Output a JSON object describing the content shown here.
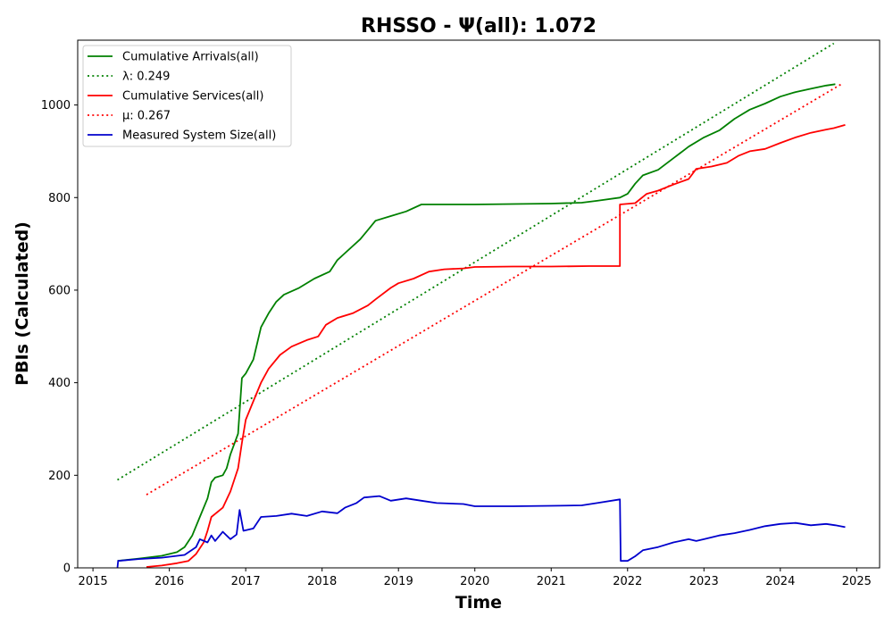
{
  "chart_data": {
    "type": "line",
    "title": "RHSSO -  Ψ(all): 1.072",
    "xlabel": "Time",
    "ylabel": "PBIs (Calculated)",
    "xlim": [
      2014.8,
      2025.3
    ],
    "ylim": [
      0,
      1140
    ],
    "x_ticks": [
      2015,
      2016,
      2017,
      2018,
      2019,
      2020,
      2021,
      2022,
      2023,
      2024,
      2025
    ],
    "y_ticks": [
      0,
      200,
      400,
      600,
      800,
      1000
    ],
    "grid": false,
    "legend_position": "upper-left",
    "series": [
      {
        "name": "Cumulative Arrivals(all)",
        "color": "#008000",
        "style": "solid",
        "points": [
          [
            2015.32,
            15
          ],
          [
            2015.6,
            20
          ],
          [
            2015.9,
            26
          ],
          [
            2016.1,
            34
          ],
          [
            2016.2,
            45
          ],
          [
            2016.3,
            70
          ],
          [
            2016.4,
            110
          ],
          [
            2016.5,
            150
          ],
          [
            2016.55,
            185
          ],
          [
            2016.6,
            195
          ],
          [
            2016.7,
            200
          ],
          [
            2016.75,
            215
          ],
          [
            2016.8,
            245
          ],
          [
            2016.9,
            290
          ],
          [
            2016.95,
            410
          ],
          [
            2017.0,
            420
          ],
          [
            2017.1,
            450
          ],
          [
            2017.2,
            520
          ],
          [
            2017.3,
            550
          ],
          [
            2017.4,
            575
          ],
          [
            2017.5,
            590
          ],
          [
            2017.7,
            605
          ],
          [
            2017.9,
            625
          ],
          [
            2018.1,
            640
          ],
          [
            2018.2,
            665
          ],
          [
            2018.3,
            680
          ],
          [
            2018.5,
            710
          ],
          [
            2018.6,
            730
          ],
          [
            2018.7,
            750
          ],
          [
            2018.9,
            760
          ],
          [
            2019.1,
            770
          ],
          [
            2019.3,
            785
          ],
          [
            2019.5,
            785
          ],
          [
            2020.0,
            785
          ],
          [
            2020.5,
            786
          ],
          [
            2021.0,
            787
          ],
          [
            2021.4,
            789
          ],
          [
            2021.6,
            793
          ],
          [
            2021.9,
            800
          ],
          [
            2022.0,
            808
          ],
          [
            2022.1,
            830
          ],
          [
            2022.2,
            848
          ],
          [
            2022.4,
            860
          ],
          [
            2022.6,
            885
          ],
          [
            2022.8,
            910
          ],
          [
            2023.0,
            930
          ],
          [
            2023.2,
            945
          ],
          [
            2023.4,
            970
          ],
          [
            2023.6,
            990
          ],
          [
            2023.8,
            1003
          ],
          [
            2024.0,
            1018
          ],
          [
            2024.2,
            1028
          ],
          [
            2024.4,
            1035
          ],
          [
            2024.6,
            1042
          ],
          [
            2024.72,
            1045
          ]
        ]
      },
      {
        "name": "λ: 0.249",
        "color": "#008000",
        "style": "dotted",
        "points": [
          [
            2015.32,
            190
          ],
          [
            2024.7,
            1133
          ]
        ]
      },
      {
        "name": "Cumulative Services(all)",
        "color": "#ff0000",
        "style": "solid",
        "points": [
          [
            2015.7,
            2
          ],
          [
            2015.9,
            5
          ],
          [
            2016.1,
            10
          ],
          [
            2016.25,
            15
          ],
          [
            2016.35,
            30
          ],
          [
            2016.45,
            55
          ],
          [
            2016.5,
            80
          ],
          [
            2016.55,
            110
          ],
          [
            2016.7,
            130
          ],
          [
            2016.8,
            165
          ],
          [
            2016.9,
            215
          ],
          [
            2016.95,
            270
          ],
          [
            2017.0,
            320
          ],
          [
            2017.1,
            360
          ],
          [
            2017.2,
            400
          ],
          [
            2017.3,
            430
          ],
          [
            2017.45,
            460
          ],
          [
            2017.6,
            478
          ],
          [
            2017.8,
            492
          ],
          [
            2017.95,
            500
          ],
          [
            2018.05,
            525
          ],
          [
            2018.2,
            540
          ],
          [
            2018.4,
            550
          ],
          [
            2018.6,
            567
          ],
          [
            2018.7,
            580
          ],
          [
            2018.9,
            605
          ],
          [
            2019.0,
            615
          ],
          [
            2019.2,
            625
          ],
          [
            2019.4,
            640
          ],
          [
            2019.6,
            645
          ],
          [
            2019.85,
            647
          ],
          [
            2020.0,
            650
          ],
          [
            2020.5,
            651
          ],
          [
            2021.0,
            651
          ],
          [
            2021.5,
            652
          ],
          [
            2021.9,
            652
          ],
          [
            2021.9,
            785
          ],
          [
            2022.1,
            788
          ],
          [
            2022.25,
            808
          ],
          [
            2022.4,
            815
          ],
          [
            2022.6,
            828
          ],
          [
            2022.8,
            840
          ],
          [
            2022.9,
            862
          ],
          [
            2023.1,
            867
          ],
          [
            2023.3,
            875
          ],
          [
            2023.45,
            890
          ],
          [
            2023.6,
            900
          ],
          [
            2023.8,
            905
          ],
          [
            2024.0,
            918
          ],
          [
            2024.2,
            930
          ],
          [
            2024.4,
            940
          ],
          [
            2024.6,
            947
          ],
          [
            2024.7,
            950
          ],
          [
            2024.85,
            957
          ]
        ]
      },
      {
        "name": "μ: 0.267",
        "color": "#ff0000",
        "style": "dotted",
        "points": [
          [
            2015.7,
            158
          ],
          [
            2024.82,
            1047
          ]
        ]
      },
      {
        "name": "Measured System Size(all)",
        "color": "#0000cd",
        "style": "solid",
        "points": [
          [
            2015.32,
            0
          ],
          [
            2015.33,
            15
          ],
          [
            2015.6,
            19
          ],
          [
            2015.9,
            22
          ],
          [
            2016.2,
            28
          ],
          [
            2016.35,
            45
          ],
          [
            2016.4,
            62
          ],
          [
            2016.5,
            55
          ],
          [
            2016.55,
            70
          ],
          [
            2016.6,
            58
          ],
          [
            2016.7,
            78
          ],
          [
            2016.8,
            62
          ],
          [
            2016.88,
            72
          ],
          [
            2016.92,
            125
          ],
          [
            2016.97,
            80
          ],
          [
            2017.1,
            85
          ],
          [
            2017.2,
            110
          ],
          [
            2017.4,
            112
          ],
          [
            2017.6,
            117
          ],
          [
            2017.8,
            112
          ],
          [
            2018.0,
            122
          ],
          [
            2018.2,
            118
          ],
          [
            2018.3,
            130
          ],
          [
            2018.45,
            140
          ],
          [
            2018.55,
            152
          ],
          [
            2018.75,
            155
          ],
          [
            2018.9,
            145
          ],
          [
            2019.1,
            150
          ],
          [
            2019.3,
            145
          ],
          [
            2019.5,
            140
          ],
          [
            2019.85,
            138
          ],
          [
            2020.0,
            133
          ],
          [
            2020.5,
            133
          ],
          [
            2021.0,
            134
          ],
          [
            2021.4,
            135
          ],
          [
            2021.6,
            140
          ],
          [
            2021.9,
            148
          ],
          [
            2021.91,
            15
          ],
          [
            2022.0,
            15
          ],
          [
            2022.1,
            25
          ],
          [
            2022.2,
            38
          ],
          [
            2022.4,
            45
          ],
          [
            2022.6,
            55
          ],
          [
            2022.8,
            62
          ],
          [
            2022.9,
            58
          ],
          [
            2023.0,
            62
          ],
          [
            2023.2,
            70
          ],
          [
            2023.4,
            75
          ],
          [
            2023.6,
            82
          ],
          [
            2023.8,
            90
          ],
          [
            2024.0,
            95
          ],
          [
            2024.2,
            97
          ],
          [
            2024.4,
            92
          ],
          [
            2024.6,
            95
          ],
          [
            2024.72,
            92
          ],
          [
            2024.85,
            88
          ]
        ]
      }
    ]
  }
}
